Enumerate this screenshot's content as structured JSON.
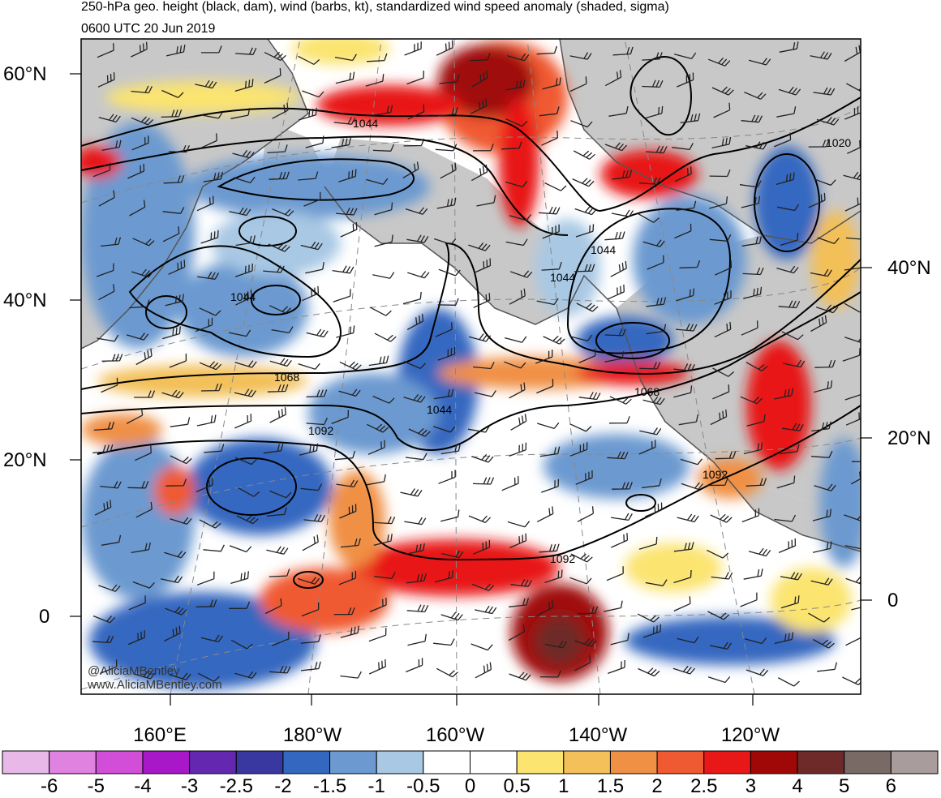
{
  "header": {
    "title": "250-hPa geo. height (black, dam), wind (barbs, kt), standardized wind speed anomaly (shaded, sigma)",
    "valid_time": "0600 UTC 20 Jun 2019"
  },
  "map": {
    "left_lat_labels": [
      "60°N",
      "40°N",
      "20°N",
      "0"
    ],
    "right_lat_labels": [
      "40°N",
      "20°N",
      "0"
    ],
    "lon_labels": [
      "160°E",
      "180°W",
      "160°W",
      "140°W",
      "120°W"
    ],
    "contour_labels": [
      "1044",
      "1020",
      "1044",
      "1044",
      "1044",
      "1068",
      "1092",
      "1044",
      "1068",
      "1092",
      "1092"
    ],
    "credits": [
      "@AliciaMBentley",
      "www.AliciaMBentley.com"
    ]
  },
  "colorbar": {
    "labels": [
      "-6",
      "-5",
      "-4",
      "-3",
      "-2.5",
      "-2",
      "-1.5",
      "-1",
      "-0.5",
      "0",
      "0.5",
      "1",
      "1.5",
      "2",
      "2.5",
      "3",
      "4",
      "5",
      "6"
    ],
    "colors": [
      "#e8b8e8",
      "#e082e0",
      "#d24ed8",
      "#a818c8",
      "#6428b0",
      "#3838a0",
      "#3468c0",
      "#6c9ad0",
      "#a8c8e4",
      "#ffffff",
      "#ffffff",
      "#fbe470",
      "#f3c059",
      "#f09045",
      "#f05a32",
      "#e81818",
      "#a00808",
      "#6e2a28",
      "#7a6a66",
      "#a89c9c"
    ]
  }
}
